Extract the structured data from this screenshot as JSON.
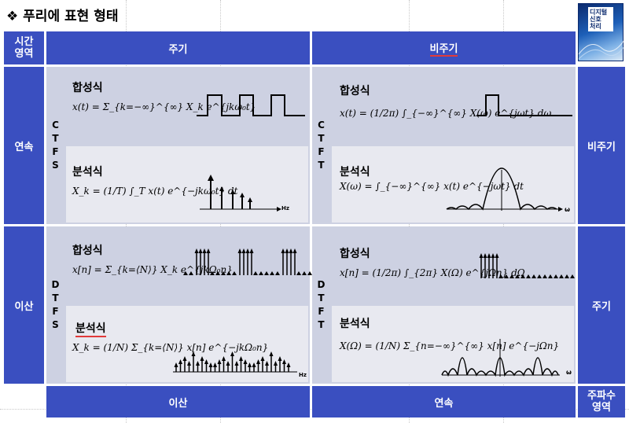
{
  "slide": {
    "title_icon": "❖",
    "title": "푸리에 표현 형태"
  },
  "book_cover": {
    "title": "디지털\n신호\n처리",
    "icon": "book-cover-image"
  },
  "headers": {
    "time_domain": "시간\n영역",
    "periodic_top": "주기",
    "aperiodic_top": "비주기",
    "continuous_left": "연속",
    "discrete_left": "이산",
    "aperiodic_right": "비주기",
    "periodic_right": "주기",
    "discrete_bottom": "이산",
    "continuous_bottom": "연속",
    "freq_domain": "주파수\n영역"
  },
  "transforms": {
    "ctfs": [
      "C",
      "T",
      "F",
      "S"
    ],
    "ctft": [
      "C",
      "T",
      "F",
      "T"
    ],
    "dtfs": [
      "D",
      "T",
      "F",
      "S"
    ],
    "dtft": [
      "D",
      "T",
      "F",
      "T"
    ]
  },
  "ctfs": {
    "synthesis_label": "합성식",
    "synthesis_eq": "x(t) = Σ_{k=−∞}^{∞} X_k e^{jkω₀t}",
    "analysis_label": "분석식",
    "analysis_eq": "X_k = (1/T) ∫_T x(t) e^{−jkω₀t} dt",
    "axis_label": "Hz"
  },
  "ctft": {
    "synthesis_label": "합성식",
    "synthesis_eq": "x(t) = (1/2π) ∫_{−∞}^{∞} X(ω) e^{jωt} dω",
    "analysis_label": "분석식",
    "analysis_eq": "X(ω) = ∫_{−∞}^{∞} x(t) e^{−jωt} dt",
    "axis_label": "ω"
  },
  "dtfs": {
    "synthesis_label": "합성식",
    "synthesis_eq": "x[n] = Σ_{k=⟨N⟩} X_k e^{jkΩ₀n}",
    "analysis_label": "분석식",
    "analysis_eq": "X_k = (1/N) Σ_{k=⟨N⟩} x[n] e^{−jkΩ₀n}",
    "axis_label": "Hz"
  },
  "dtft": {
    "synthesis_label": "합성식",
    "synthesis_eq": "x[n] = (1/2π) ∫_{2π} X(Ω) e^{jΩn} dΩ",
    "analysis_label": "분석식",
    "analysis_eq": "X(Ω) = (1/N) Σ_{n=−∞}^{∞} x[n] e^{−jΩn}",
    "axis_label": "ω"
  }
}
